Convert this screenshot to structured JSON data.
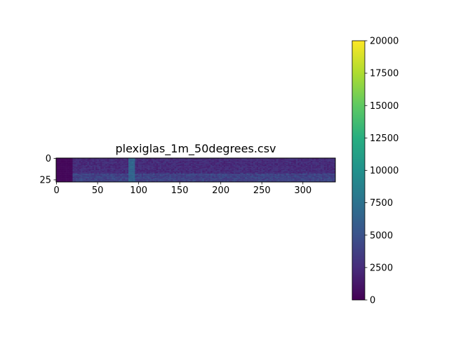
{
  "chart_data": {
    "type": "heatmap",
    "title": "plexiglas_1m_50degrees.csv",
    "xlabel": "",
    "ylabel": "",
    "n_cols": 340,
    "n_rows": 28,
    "xlim": [
      -0.5,
      339.5
    ],
    "ylim": [
      27.5,
      -0.5
    ],
    "x_ticks": [
      0,
      50,
      100,
      150,
      200,
      250,
      300
    ],
    "y_ticks": [
      0,
      25
    ],
    "colormap": "viridis",
    "color_range": [
      0,
      20000
    ],
    "colorbar_ticks": [
      0,
      2500,
      5000,
      7500,
      10000,
      12500,
      15000,
      17500,
      20000
    ],
    "colorbar_tick_labels": [
      "0",
      "2500",
      "5000",
      "7500",
      "10000",
      "12500",
      "15000",
      "17500",
      "20000"
    ],
    "value_summary": {
      "near_zero_columns": [
        0,
        19
      ],
      "typical_value": 2500,
      "bright_band_columns": [
        87,
        95
      ],
      "bright_band_value": 6500,
      "lower_rows_brighter_from_row": 18,
      "lower_rows_value": 4000
    }
  }
}
